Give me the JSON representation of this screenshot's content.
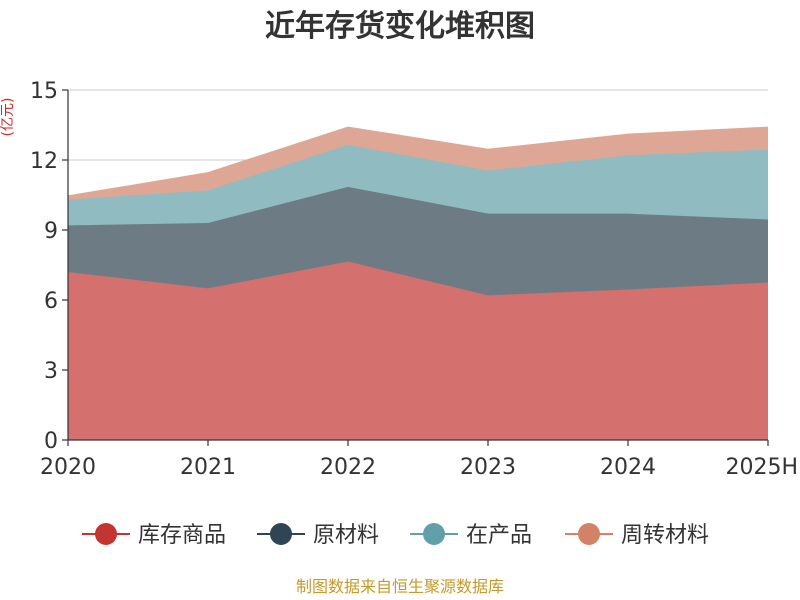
{
  "chart_data": {
    "type": "area",
    "title": "近年存货变化堆积图",
    "ylabel": "(亿元)",
    "categories": [
      "2020",
      "2021",
      "2022",
      "2023",
      "2024",
      "2025H"
    ],
    "ylim": [
      0,
      15
    ],
    "yticks": [
      0,
      3,
      6,
      9,
      12,
      15
    ],
    "stacked": true,
    "grid": true,
    "legend": "bottom",
    "series": [
      {
        "name": "库存商品",
        "values": [
          7.2,
          6.5,
          7.65,
          6.2,
          6.45,
          6.75
        ],
        "color": "#c23531",
        "fill": "#d4706d"
      },
      {
        "name": "原材料",
        "values": [
          2.0,
          2.8,
          3.2,
          3.5,
          3.25,
          2.7
        ],
        "color": "#2f4554",
        "fill": "#6d7c84"
      },
      {
        "name": "在产品",
        "values": [
          1.1,
          1.4,
          1.8,
          1.85,
          2.5,
          3.0
        ],
        "color": "#61a0a8",
        "fill": "#90bbc0"
      },
      {
        "name": "周转材料",
        "values": [
          0.15,
          0.75,
          0.75,
          0.9,
          0.9,
          0.95
        ],
        "color": "#d48265",
        "fill": "#dea795"
      }
    ]
  },
  "footer": "制图数据来自恒生聚源数据库"
}
